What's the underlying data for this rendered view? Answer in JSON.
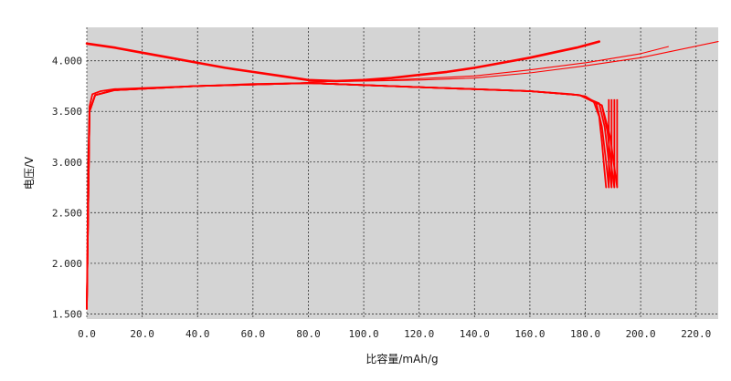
{
  "chart_data": {
    "type": "line",
    "title": "",
    "xlabel": "比容量/mAh/g",
    "ylabel": "电压/V",
    "xlim": [
      0,
      228
    ],
    "ylim": [
      1.45,
      4.33
    ],
    "x_ticks": [
      "0.0",
      "20.0",
      "40.0",
      "60.0",
      "80.0",
      "100.0",
      "120.0",
      "140.0",
      "160.0",
      "180.0",
      "200.0",
      "220.0"
    ],
    "x_tick_values": [
      0,
      20,
      40,
      60,
      80,
      100,
      120,
      140,
      160,
      180,
      200,
      220
    ],
    "y_ticks": [
      "1.500",
      "2.000",
      "2.500",
      "3.000",
      "3.500",
      "4.000"
    ],
    "y_tick_values": [
      1.5,
      2.0,
      2.5,
      3.0,
      3.5,
      4.0
    ],
    "grid": true,
    "background": "#d4d4d4",
    "line_color": "#ff0000",
    "series": [
      {
        "kind": "charge",
        "x": [
          0,
          10,
          20,
          30,
          40,
          50,
          60,
          70,
          80,
          90,
          100,
          110,
          120,
          130,
          140,
          150,
          160,
          170,
          177,
          185
        ],
        "y": [
          4.17,
          4.13,
          4.08,
          4.03,
          3.98,
          3.93,
          3.89,
          3.85,
          3.81,
          3.8,
          3.81,
          3.83,
          3.86,
          3.89,
          3.93,
          3.98,
          4.03,
          4.09,
          4.13,
          4.19
        ]
      },
      {
        "kind": "charge",
        "x": [
          80,
          100,
          120,
          140,
          160,
          180,
          200,
          228
        ],
        "y": [
          3.79,
          3.8,
          3.81,
          3.83,
          3.88,
          3.95,
          4.03,
          4.19
        ]
      },
      {
        "kind": "charge",
        "x": [
          80,
          110,
          140,
          160,
          180,
          200,
          210
        ],
        "y": [
          3.79,
          3.81,
          3.85,
          3.91,
          3.98,
          4.07,
          4.14
        ]
      },
      {
        "kind": "discharge",
        "x": [
          0,
          0.5,
          1,
          2,
          5,
          10,
          20,
          40,
          60,
          80,
          100,
          120,
          140,
          160,
          175,
          180,
          183,
          185,
          186,
          187,
          187.5
        ],
        "y": [
          1.55,
          3.0,
          3.55,
          3.67,
          3.7,
          3.72,
          3.73,
          3.75,
          3.77,
          3.78,
          3.76,
          3.74,
          3.72,
          3.7,
          3.67,
          3.65,
          3.6,
          3.45,
          3.2,
          2.9,
          2.75
        ]
      },
      {
        "kind": "discharge",
        "x": [
          0,
          1,
          3,
          10,
          40,
          80,
          120,
          160,
          178,
          184,
          186,
          187.5,
          188.5
        ],
        "y": [
          1.55,
          3.5,
          3.66,
          3.71,
          3.75,
          3.78,
          3.74,
          3.7,
          3.66,
          3.58,
          3.35,
          3.0,
          2.75
        ]
      },
      {
        "kind": "discharge",
        "x": [
          0,
          1,
          3,
          10,
          40,
          80,
          120,
          160,
          178,
          185,
          187,
          188.5,
          189.5
        ],
        "y": [
          1.55,
          3.5,
          3.66,
          3.71,
          3.75,
          3.78,
          3.74,
          3.7,
          3.66,
          3.58,
          3.35,
          3.0,
          2.75
        ]
      },
      {
        "kind": "discharge",
        "x": [
          0,
          1,
          3,
          10,
          40,
          80,
          120,
          160,
          178,
          186,
          188,
          189.5,
          190.5
        ],
        "y": [
          1.55,
          3.5,
          3.66,
          3.71,
          3.75,
          3.78,
          3.74,
          3.7,
          3.66,
          3.56,
          3.3,
          2.95,
          2.75
        ]
      },
      {
        "kind": "discharge",
        "x": [
          0,
          1,
          3,
          10,
          40,
          80,
          120,
          160,
          178,
          186,
          189,
          190.5,
          191.5
        ],
        "y": [
          1.55,
          3.5,
          3.66,
          3.71,
          3.75,
          3.78,
          3.74,
          3.7,
          3.66,
          3.56,
          3.25,
          2.95,
          2.75
        ]
      }
    ],
    "relaxation_marks": [
      {
        "x": 188.5,
        "y_top": 3.62,
        "y_bottom": 2.75
      },
      {
        "x": 189.5,
        "y_top": 3.62,
        "y_bottom": 2.75
      },
      {
        "x": 190.5,
        "y_top": 3.62,
        "y_bottom": 2.75
      },
      {
        "x": 191.5,
        "y_top": 3.62,
        "y_bottom": 2.75
      }
    ]
  }
}
